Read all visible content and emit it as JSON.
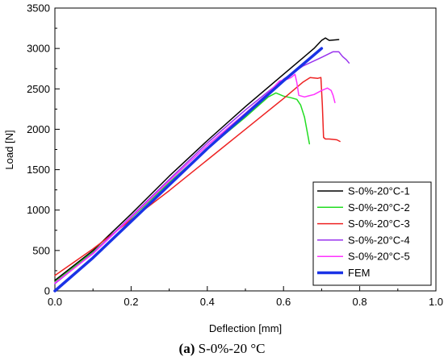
{
  "caption": {
    "tag": "(a)",
    "text": " S-0%-20 °C"
  },
  "chart_data": {
    "type": "line",
    "title": "",
    "xlabel": "Deflection [mm]",
    "ylabel": "Load [N]",
    "xlim": [
      0.0,
      1.0
    ],
    "ylim": [
      0,
      3500
    ],
    "x_ticks": [
      "0.0",
      "0.2",
      "0.4",
      "0.6",
      "0.8",
      "1.0"
    ],
    "y_ticks": [
      "0",
      "500",
      "1000",
      "1500",
      "2000",
      "2500",
      "3000",
      "3500"
    ],
    "grid": false,
    "legend_position": "bottom-right",
    "series": [
      {
        "name": "S-0%-20°C-1",
        "color": "#000000",
        "width": 1.5,
        "points": [
          [
            0.0,
            130
          ],
          [
            0.1,
            500
          ],
          [
            0.2,
            950
          ],
          [
            0.3,
            1420
          ],
          [
            0.4,
            1860
          ],
          [
            0.5,
            2280
          ],
          [
            0.6,
            2680
          ],
          [
            0.65,
            2880
          ],
          [
            0.68,
            3000
          ],
          [
            0.7,
            3100
          ],
          [
            0.71,
            3130
          ],
          [
            0.72,
            3100
          ],
          [
            0.745,
            3110
          ]
        ]
      },
      {
        "name": "S-0%-20°C-2",
        "color": "#22dd22",
        "width": 1.5,
        "points": [
          [
            0.0,
            110
          ],
          [
            0.1,
            480
          ],
          [
            0.2,
            900
          ],
          [
            0.3,
            1340
          ],
          [
            0.4,
            1760
          ],
          [
            0.5,
            2150
          ],
          [
            0.56,
            2400
          ],
          [
            0.58,
            2450
          ],
          [
            0.6,
            2410
          ],
          [
            0.62,
            2390
          ],
          [
            0.635,
            2370
          ],
          [
            0.645,
            2300
          ],
          [
            0.655,
            2150
          ],
          [
            0.663,
            1950
          ],
          [
            0.668,
            1820
          ]
        ]
      },
      {
        "name": "S-0%-20°C-3",
        "color": "#ee2222",
        "width": 1.5,
        "points": [
          [
            0.0,
            190
          ],
          [
            0.1,
            520
          ],
          [
            0.2,
            880
          ],
          [
            0.3,
            1240
          ],
          [
            0.4,
            1620
          ],
          [
            0.5,
            2000
          ],
          [
            0.6,
            2380
          ],
          [
            0.65,
            2580
          ],
          [
            0.67,
            2640
          ],
          [
            0.69,
            2630
          ],
          [
            0.698,
            2640
          ],
          [
            0.702,
            2300
          ],
          [
            0.705,
            1900
          ],
          [
            0.71,
            1880
          ],
          [
            0.72,
            1880
          ],
          [
            0.74,
            1870
          ],
          [
            0.748,
            1850
          ]
        ]
      },
      {
        "name": "S-0%-20°C-4",
        "color": "#9933ee",
        "width": 1.5,
        "points": [
          [
            0.0,
            90
          ],
          [
            0.1,
            470
          ],
          [
            0.2,
            920
          ],
          [
            0.3,
            1380
          ],
          [
            0.4,
            1830
          ],
          [
            0.5,
            2240
          ],
          [
            0.6,
            2620
          ],
          [
            0.65,
            2780
          ],
          [
            0.7,
            2890
          ],
          [
            0.73,
            2960
          ],
          [
            0.745,
            2960
          ],
          [
            0.755,
            2900
          ],
          [
            0.765,
            2860
          ],
          [
            0.772,
            2820
          ]
        ]
      },
      {
        "name": "S-0%-20°C-5",
        "color": "#ff33ff",
        "width": 1.5,
        "points": [
          [
            0.0,
            100
          ],
          [
            0.1,
            460
          ],
          [
            0.2,
            910
          ],
          [
            0.3,
            1360
          ],
          [
            0.4,
            1800
          ],
          [
            0.5,
            2200
          ],
          [
            0.56,
            2450
          ],
          [
            0.59,
            2600
          ],
          [
            0.61,
            2620
          ],
          [
            0.62,
            2640
          ],
          [
            0.63,
            2680
          ],
          [
            0.635,
            2580
          ],
          [
            0.64,
            2420
          ],
          [
            0.655,
            2400
          ],
          [
            0.68,
            2430
          ],
          [
            0.7,
            2480
          ],
          [
            0.715,
            2510
          ],
          [
            0.725,
            2480
          ],
          [
            0.73,
            2420
          ],
          [
            0.735,
            2330
          ]
        ]
      },
      {
        "name": "FEM",
        "color": "#1a33e6",
        "width": 3.5,
        "points": [
          [
            0.0,
            0
          ],
          [
            0.1,
            410
          ],
          [
            0.2,
            860
          ],
          [
            0.3,
            1310
          ],
          [
            0.4,
            1760
          ],
          [
            0.5,
            2180
          ],
          [
            0.6,
            2600
          ],
          [
            0.7,
            3000
          ]
        ]
      }
    ]
  }
}
